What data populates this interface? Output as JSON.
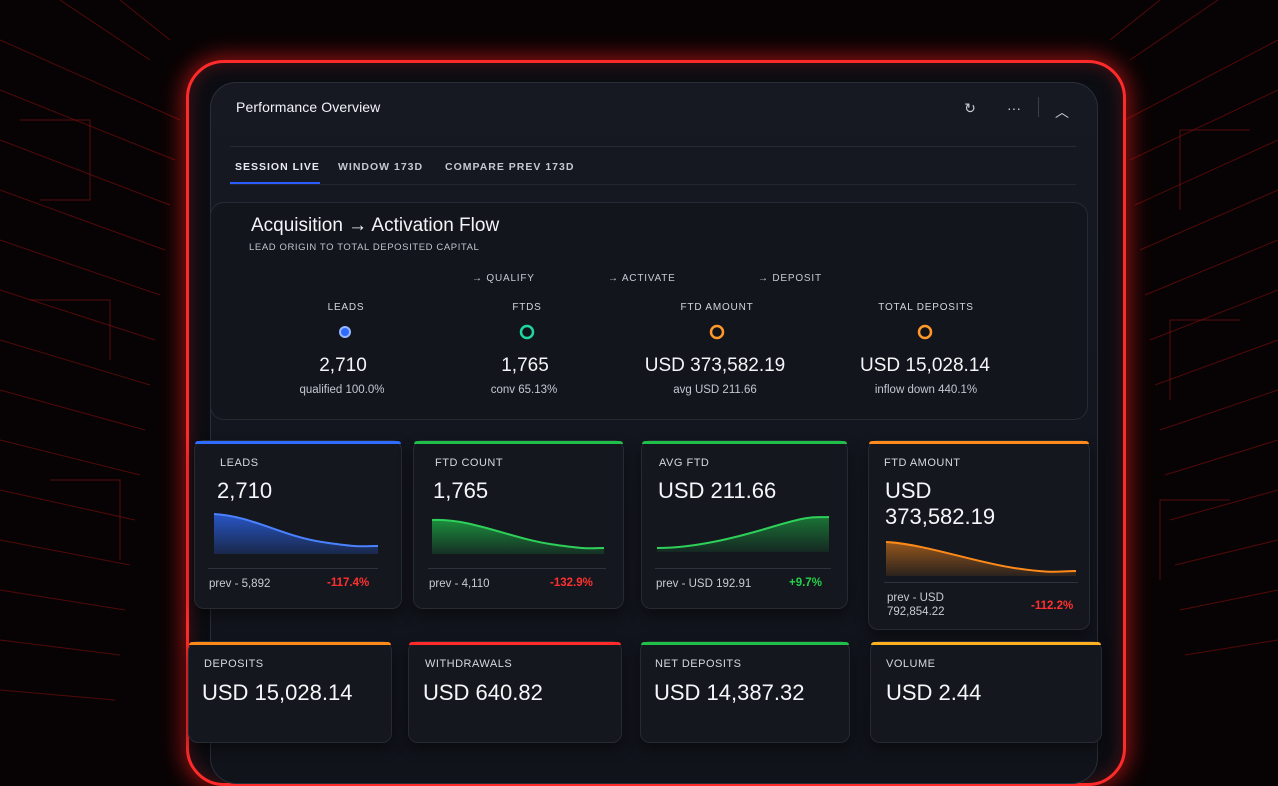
{
  "header": {
    "title": "Performance Overview",
    "icons": [
      "refresh-icon",
      "more-icon",
      "collapse-icon"
    ],
    "refresh_glyph": "↻",
    "more_glyph": "···",
    "collapse_glyph": "︿"
  },
  "tabs": [
    {
      "label": "SESSION LIVE",
      "active": true
    },
    {
      "label": "WINDOW 173D",
      "active": false
    },
    {
      "label": "COMPARE PREV 173D",
      "active": false
    }
  ],
  "flow": {
    "title": "Acquisition → Activation Flow",
    "subtitle": "LEAD ORIGIN TO TOTAL DEPOSITED CAPITAL",
    "steps": [
      "→ QUALIFY",
      "→ ACTIVATE",
      "→ DEPOSIT"
    ],
    "stages": [
      {
        "label": "LEADS",
        "value": "2,710",
        "sub": "qualified 100.0%",
        "color": "#2f6bff"
      },
      {
        "label": "FTDS",
        "value": "1,765",
        "sub": "conv 65.13%",
        "color": "#1fd6a0"
      },
      {
        "label": "FTD AMOUNT",
        "value": "USD 373,582.19",
        "sub": "avg USD 211.66",
        "color": "#ff9a2a"
      },
      {
        "label": "TOTAL DEPOSITS",
        "value": "USD 15,028.14",
        "sub": "inflow down 440.1%",
        "color": "#ff9a2a"
      }
    ]
  },
  "cards": [
    {
      "label": "LEADS",
      "value": "2,710",
      "prev": "prev - 5,892",
      "delta": "-117.4%",
      "accent": "#2f6bff",
      "delta_color": "#ff3030",
      "trend": "down"
    },
    {
      "label": "FTD COUNT",
      "value": "1,765",
      "prev": "prev - 4,110",
      "delta": "-132.9%",
      "accent": "#1fbf4a",
      "delta_color": "#ff3030",
      "trend": "down"
    },
    {
      "label": "AVG FTD",
      "value": "USD 211.66",
      "prev": "prev - USD 192.91",
      "delta": "+9.7%",
      "accent": "#1fbf4a",
      "delta_color": "#26d04a",
      "trend": "up"
    },
    {
      "label": "FTD AMOUNT",
      "value_line1": "USD",
      "value_line2": "373,582.19",
      "prev_line1": "prev - USD",
      "prev_line2": "792,854.22",
      "delta": "-112.2%",
      "accent": "#ff8a1a",
      "delta_color": "#ff3030",
      "trend": "down"
    }
  ],
  "bottom_cards": [
    {
      "label": "DEPOSITS",
      "value": "USD 15,028.14",
      "accent": "#ff8a1a"
    },
    {
      "label": "WITHDRAWALS",
      "value": "USD 640.82",
      "accent": "#ff2a2a"
    },
    {
      "label": "NET DEPOSITS",
      "value": "USD 14,387.32",
      "accent": "#1fbf4a"
    },
    {
      "label": "VOLUME",
      "value": "USD 2.44",
      "accent": "#ffb020"
    }
  ]
}
